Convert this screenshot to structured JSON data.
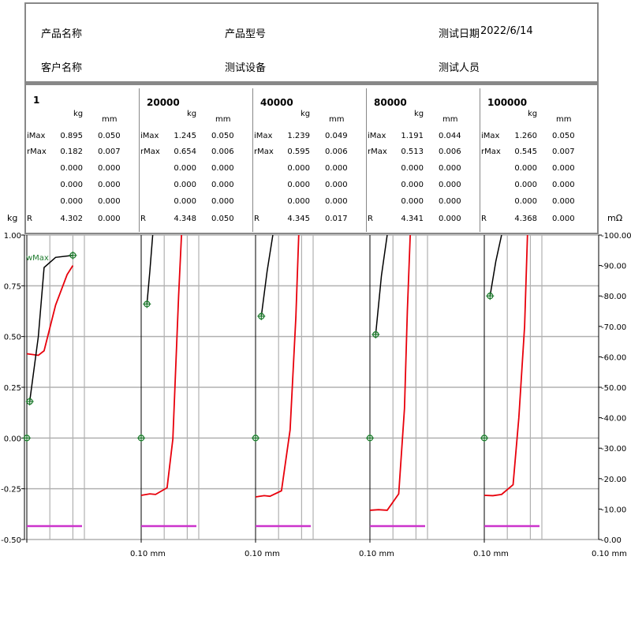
{
  "header": {
    "product_name_label": "产品名称",
    "product_model_label": "产品型号",
    "test_date_label": "测试日期",
    "test_date_value": "2022/6/14",
    "customer_name_label": "客户名称",
    "test_equipment_label": "测试设备",
    "tester_label": "测试人员"
  },
  "table": {
    "unit_kg": "kg",
    "unit_mm": "mm",
    "panels": [
      {
        "title": "1",
        "rows": [
          {
            "label": "iMax",
            "kg": "0.895",
            "mm": "0.050"
          },
          {
            "label": "rMax",
            "kg": "0.182",
            "mm": "0.007"
          },
          {
            "label": "",
            "kg": "0.000",
            "mm": "0.000"
          },
          {
            "label": "",
            "kg": "0.000",
            "mm": "0.000"
          },
          {
            "label": "",
            "kg": "0.000",
            "mm": "0.000"
          },
          {
            "label": "R",
            "kg": "4.302",
            "mm": "0.000"
          }
        ]
      },
      {
        "title": "20000",
        "rows": [
          {
            "label": "iMax",
            "kg": "1.245",
            "mm": "0.050"
          },
          {
            "label": "rMax",
            "kg": "0.654",
            "mm": "0.006"
          },
          {
            "label": "",
            "kg": "0.000",
            "mm": "0.000"
          },
          {
            "label": "",
            "kg": "0.000",
            "mm": "0.000"
          },
          {
            "label": "",
            "kg": "0.000",
            "mm": "0.000"
          },
          {
            "label": "R",
            "kg": "4.348",
            "mm": "0.050"
          }
        ]
      },
      {
        "title": "40000",
        "rows": [
          {
            "label": "iMax",
            "kg": "1.239",
            "mm": "0.049"
          },
          {
            "label": "rMax",
            "kg": "0.595",
            "mm": "0.006"
          },
          {
            "label": "",
            "kg": "0.000",
            "mm": "0.000"
          },
          {
            "label": "",
            "kg": "0.000",
            "mm": "0.000"
          },
          {
            "label": "",
            "kg": "0.000",
            "mm": "0.000"
          },
          {
            "label": "R",
            "kg": "4.345",
            "mm": "0.017"
          }
        ]
      },
      {
        "title": "80000",
        "rows": [
          {
            "label": "iMax",
            "kg": "1.191",
            "mm": "0.044"
          },
          {
            "label": "rMax",
            "kg": "0.513",
            "mm": "0.006"
          },
          {
            "label": "",
            "kg": "0.000",
            "mm": "0.000"
          },
          {
            "label": "",
            "kg": "0.000",
            "mm": "0.000"
          },
          {
            "label": "",
            "kg": "0.000",
            "mm": "0.000"
          },
          {
            "label": "R",
            "kg": "4.341",
            "mm": "0.000"
          }
        ]
      },
      {
        "title": "100000",
        "rows": [
          {
            "label": "iMax",
            "kg": "1.260",
            "mm": "0.050"
          },
          {
            "label": "rMax",
            "kg": "0.545",
            "mm": "0.007"
          },
          {
            "label": "",
            "kg": "0.000",
            "mm": "0.000"
          },
          {
            "label": "",
            "kg": "0.000",
            "mm": "0.000"
          },
          {
            "label": "",
            "kg": "0.000",
            "mm": "0.000"
          },
          {
            "label": "R",
            "kg": "4.368",
            "mm": "0.000"
          }
        ]
      }
    ]
  },
  "chart_data": {
    "type": "line",
    "left_axis": {
      "unit": "kg",
      "range": [
        -0.5,
        1.0
      ],
      "ticks": [
        1.0,
        0.75,
        0.5,
        0.25,
        0.0,
        -0.25,
        -0.5
      ],
      "tick_labels": [
        "1.00",
        "0.75",
        "0.50",
        "0.25",
        "0.00",
        "-0.25",
        "-0.50"
      ]
    },
    "right_axis": {
      "unit": "mΩ",
      "range": [
        0,
        100
      ],
      "ticks": [
        100,
        90,
        80,
        70,
        60,
        50,
        40,
        30,
        20,
        10,
        0
      ],
      "tick_labels": [
        "100.00",
        "90.00",
        "80.00",
        "70.00",
        "60.00",
        "50.00",
        "40.00",
        "30.00",
        "20.00",
        "10.00",
        "0.00"
      ]
    },
    "x_axis": {
      "unit": "mm",
      "range": [
        0,
        0.1
      ],
      "end_label": "0.10"
    },
    "colors": {
      "force": "#000000",
      "resistance": "#e8000b",
      "marker": "#1e7b2e",
      "baseline": "#cc33cc",
      "grid": "#b0b0b0"
    },
    "annotation": "wMax",
    "panels": [
      {
        "force": [
          [
            0.005,
            0.18
          ],
          [
            0.02,
            0.5
          ],
          [
            0.03,
            0.84
          ],
          [
            0.05,
            0.89
          ],
          [
            0.08,
            0.9
          ]
        ],
        "resistance": [
          [
            0.0,
            61
          ],
          [
            0.02,
            60.5
          ],
          [
            0.03,
            62
          ],
          [
            0.05,
            77
          ],
          [
            0.07,
            87
          ],
          [
            0.08,
            90
          ]
        ],
        "markers": [
          [
            0.08,
            0.9
          ],
          [
            0.005,
            0.18
          ],
          [
            0.0,
            0.0
          ]
        ]
      },
      {
        "force": [
          [
            0.01,
            0.66
          ],
          [
            0.015,
            0.82
          ],
          [
            0.02,
            1.0
          ]
        ],
        "resistance": [
          [
            0.0,
            14.5
          ],
          [
            0.015,
            15
          ],
          [
            0.025,
            14.8
          ],
          [
            0.045,
            17
          ],
          [
            0.055,
            33
          ],
          [
            0.065,
            80
          ],
          [
            0.07,
            100
          ]
        ],
        "markers": [
          [
            0.01,
            0.66
          ],
          [
            0.0,
            0.0
          ]
        ]
      },
      {
        "force": [
          [
            0.01,
            0.6
          ],
          [
            0.02,
            0.82
          ],
          [
            0.03,
            1.0
          ]
        ],
        "resistance": [
          [
            0.0,
            14
          ],
          [
            0.015,
            14.4
          ],
          [
            0.025,
            14.2
          ],
          [
            0.045,
            16
          ],
          [
            0.06,
            36
          ],
          [
            0.07,
            73
          ],
          [
            0.075,
            100
          ]
        ],
        "markers": [
          [
            0.01,
            0.6
          ],
          [
            0.0,
            0.0
          ]
        ]
      },
      {
        "force": [
          [
            0.01,
            0.51
          ],
          [
            0.02,
            0.8
          ],
          [
            0.03,
            1.0
          ]
        ],
        "resistance": [
          [
            0.0,
            9.6
          ],
          [
            0.015,
            9.8
          ],
          [
            0.03,
            9.6
          ],
          [
            0.05,
            15
          ],
          [
            0.06,
            43
          ],
          [
            0.065,
            75
          ],
          [
            0.07,
            100
          ]
        ],
        "markers": [
          [
            0.01,
            0.51
          ],
          [
            0.0,
            0.0
          ]
        ]
      },
      {
        "force": [
          [
            0.01,
            0.7
          ],
          [
            0.02,
            0.87
          ],
          [
            0.03,
            1.0
          ]
        ],
        "resistance": [
          [
            0.0,
            14.5
          ],
          [
            0.015,
            14.4
          ],
          [
            0.03,
            14.8
          ],
          [
            0.05,
            18
          ],
          [
            0.06,
            40
          ],
          [
            0.07,
            70
          ],
          [
            0.075,
            100
          ]
        ],
        "markers": [
          [
            0.01,
            0.7
          ],
          [
            0.0,
            0.0
          ]
        ]
      }
    ]
  }
}
